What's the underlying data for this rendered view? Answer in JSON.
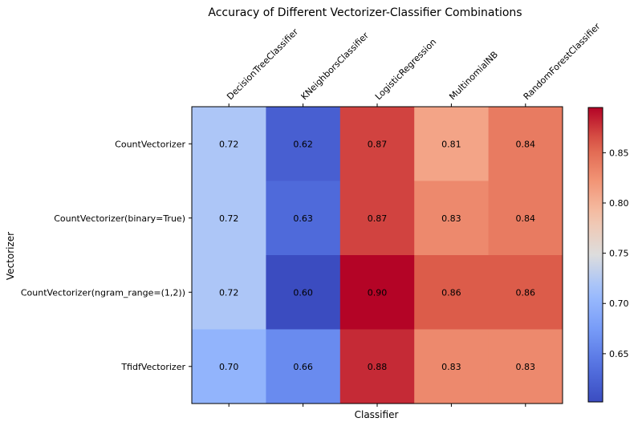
{
  "chart_data": {
    "type": "heatmap",
    "title": "Accuracy of Different Vectorizer-Classifier Combinations",
    "xlabel": "Classifier",
    "ylabel": "Vectorizer",
    "x_categories": [
      "DecisionTreeClassifier",
      "KNeighborsClassifier",
      "LogisticRegression",
      "MultinomialNB",
      "RandomForestClassifier"
    ],
    "y_categories": [
      "CountVectorizer",
      "CountVectorizer(binary=True)",
      "CountVectorizer(ngram_range=(1,2))",
      "TfidfVectorizer"
    ],
    "values": [
      [
        0.72,
        0.62,
        0.87,
        0.81,
        0.84
      ],
      [
        0.72,
        0.63,
        0.87,
        0.83,
        0.84
      ],
      [
        0.72,
        0.6,
        0.9,
        0.86,
        0.86
      ],
      [
        0.7,
        0.66,
        0.88,
        0.83,
        0.83
      ]
    ],
    "value_labels": [
      [
        "0.72",
        "0.62",
        "0.87",
        "0.81",
        "0.84"
      ],
      [
        "0.72",
        "0.63",
        "0.87",
        "0.83",
        "0.84"
      ],
      [
        "0.72",
        "0.60",
        "0.90",
        "0.86",
        "0.86"
      ],
      [
        "0.70",
        "0.66",
        "0.88",
        "0.83",
        "0.83"
      ]
    ],
    "colormap": "coolwarm",
    "vmin": 0.602,
    "vmax": 0.895,
    "colorbar_ticks": [
      "0.65",
      "0.70",
      "0.75",
      "0.80",
      "0.85"
    ],
    "x_tick_position": "top",
    "grid": false
  }
}
